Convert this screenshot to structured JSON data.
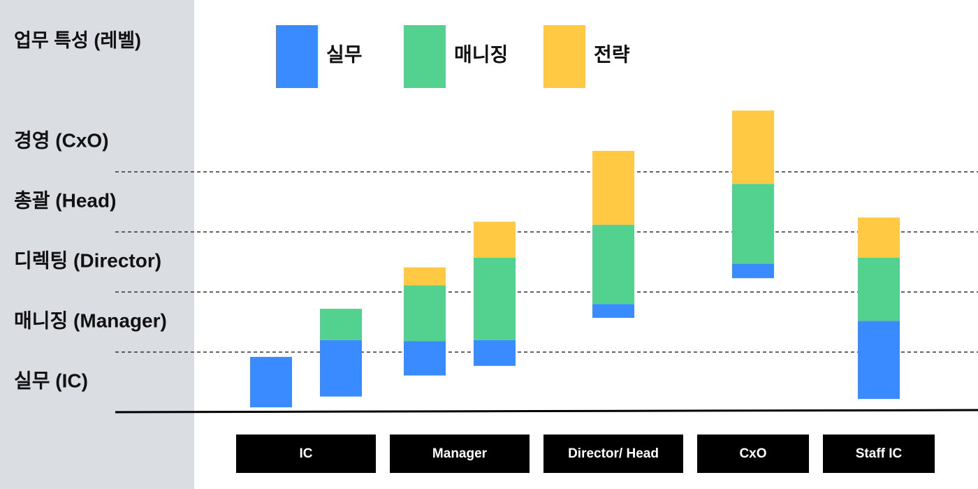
{
  "chart_data": {
    "type": "floating-stacked-bar",
    "axis_title": "업무 특성 (레벨)",
    "levels": [
      "실무 (IC)",
      "매니징 (Manager)",
      "디렉팅 (Director)",
      "총괄 (Head)",
      "경영 (CxO)"
    ],
    "ylim": [
      0,
      5
    ],
    "yticks": [
      1,
      2,
      3,
      4
    ],
    "series": [
      {
        "name": "실무",
        "color": "#3a8bff"
      },
      {
        "name": "매니징",
        "color": "#53d18f"
      },
      {
        "name": "전략",
        "color": "#ffc943"
      }
    ],
    "groups": [
      {
        "name": "IC",
        "bars": [
          {
            "base": 0.08,
            "values": [
              0.84,
              null,
              null
            ]
          },
          {
            "base": 0.26,
            "values": [
              0.94,
              0.52,
              null
            ]
          }
        ]
      },
      {
        "name": "Manager",
        "bars": [
          {
            "base": 0.61,
            "values": [
              0.57,
              0.93,
              0.3
            ]
          },
          {
            "base": 0.77,
            "values": [
              0.43,
              1.37,
              0.6
            ]
          }
        ]
      },
      {
        "name": "Director/ Head",
        "bars": [
          {
            "base": 1.57,
            "values": [
              0.23,
              1.32,
              1.23
            ]
          }
        ]
      },
      {
        "name": "CxO",
        "bars": [
          {
            "base": 2.23,
            "values": [
              0.24,
              1.33,
              1.22
            ]
          }
        ]
      },
      {
        "name": "Staff IC",
        "bars": [
          {
            "base": 0.22,
            "values": [
              1.3,
              1.05,
              0.67
            ]
          }
        ]
      }
    ]
  }
}
